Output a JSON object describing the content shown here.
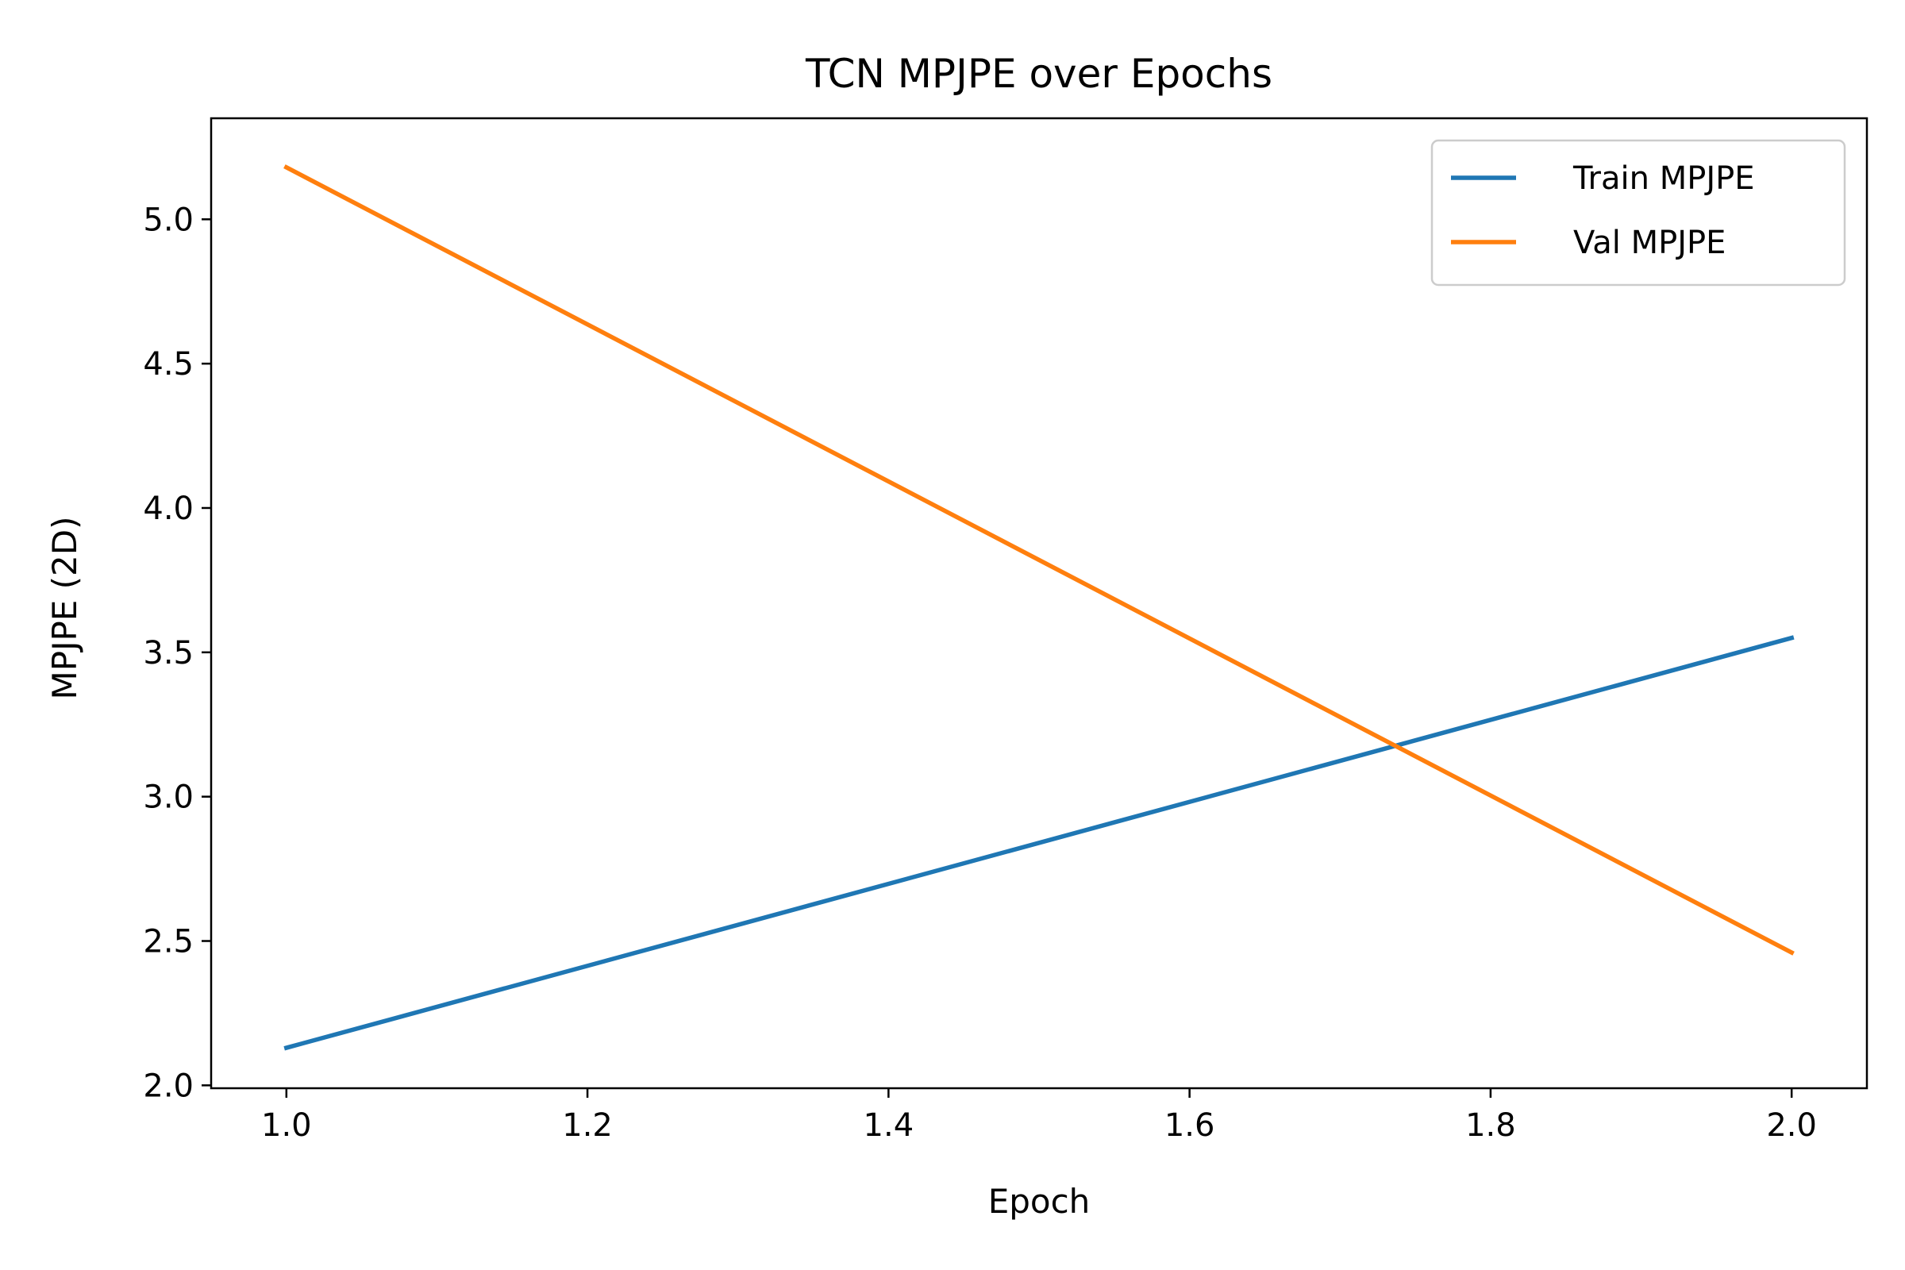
{
  "chart_data": {
    "type": "line",
    "title": "TCN MPJPE over Epochs",
    "xlabel": "Epoch",
    "ylabel": "MPJPE (2D)",
    "xlim": [
      0.95,
      2.05
    ],
    "ylim": [
      1.99,
      5.35
    ],
    "xticks": [
      1.0,
      1.2,
      1.4,
      1.6,
      1.8,
      2.0
    ],
    "xtick_labels": [
      "1.0",
      "1.2",
      "1.4",
      "1.6",
      "1.8",
      "2.0"
    ],
    "yticks": [
      2.0,
      2.5,
      3.0,
      3.5,
      4.0,
      4.5,
      5.0
    ],
    "ytick_labels": [
      "2.0",
      "2.5",
      "3.0",
      "3.5",
      "4.0",
      "4.5",
      "5.0"
    ],
    "grid": false,
    "legend_position": "top-right",
    "series": [
      {
        "name": "Train MPJPE",
        "color": "#1f77b4",
        "x": [
          1.0,
          2.0
        ],
        "y": [
          2.13,
          3.55
        ]
      },
      {
        "name": "Val MPJPE",
        "color": "#ff7f0e",
        "x": [
          1.0,
          2.0
        ],
        "y": [
          5.18,
          2.46
        ]
      }
    ]
  }
}
